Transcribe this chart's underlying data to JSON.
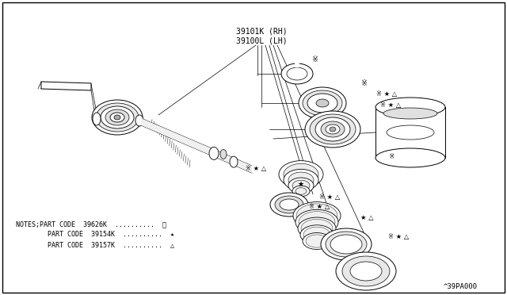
{
  "background_color": "#ffffff",
  "border_color": "#000000",
  "label_top1": "39101K (RH)",
  "label_top2": "39100L (LH)",
  "watermark": "^39PA000",
  "note1": "NOTES;PART CODE  39626K  ..........  ※",
  "note2": "        PART CODE  39154K  ..........  ★",
  "note3": "        PART CODE  39157K  ..........  △",
  "fig_width": 6.4,
  "fig_height": 3.72,
  "dpi": 100
}
